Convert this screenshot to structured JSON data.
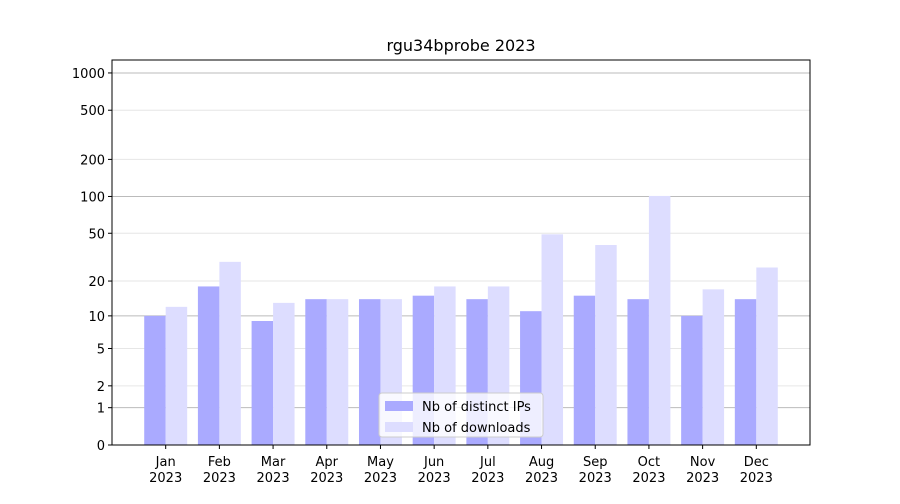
{
  "chart_data": {
    "type": "bar",
    "title": "rgu34bprobe 2023",
    "categories": [
      "Jan\n2023",
      "Feb\n2023",
      "Mar\n2023",
      "Apr\n2023",
      "May\n2023",
      "Jun\n2023",
      "Jul\n2023",
      "Aug\n2023",
      "Sep\n2023",
      "Oct\n2023",
      "Nov\n2023",
      "Dec\n2023"
    ],
    "series": [
      {
        "name": "Nb of distinct IPs",
        "color": "#aaaaff",
        "values": [
          10,
          18,
          9,
          14,
          14,
          15,
          14,
          11,
          15,
          14,
          10,
          14
        ]
      },
      {
        "name": "Nb of downloads",
        "color": "#ddddff",
        "values": [
          12,
          29,
          13,
          14,
          14,
          18,
          18,
          49,
          40,
          101,
          17,
          26
        ]
      }
    ],
    "yscale": "log1p",
    "ylim": [
      0,
      1272
    ],
    "yticks": [
      0,
      1,
      2,
      5,
      10,
      20,
      50,
      100,
      200,
      500,
      1000
    ],
    "grid": true,
    "legend": "lower center"
  }
}
